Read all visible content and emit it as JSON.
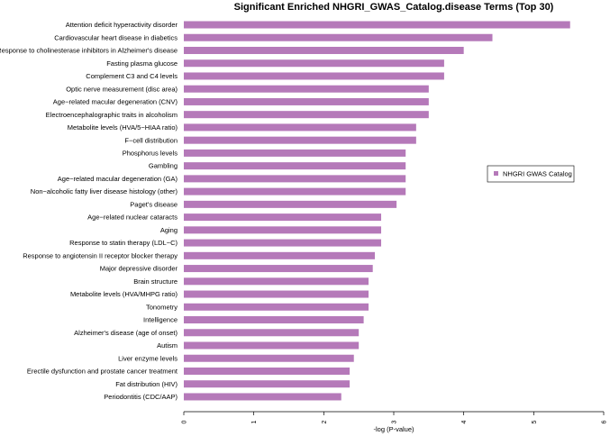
{
  "chart_data": {
    "type": "bar",
    "orientation": "horizontal",
    "title": "Significant Enriched NHGRI_GWAS_Catalog.disease Terms (Top 30)",
    "xlabel": "-log (P-value)",
    "ylabel": "",
    "xlim": [
      0,
      6
    ],
    "xticks": [
      0,
      1,
      2,
      3,
      4,
      5,
      6
    ],
    "grid": false,
    "legend": {
      "position": "right",
      "entries": [
        "NHGRI GWAS Catalog"
      ]
    },
    "bar_color": "#b579b9",
    "categories": [
      "Attention deficit hyperactivity disorder",
      "Cardiovascular heart disease in diabetics",
      "Response to cholinesterase inhibitors in Alzheimer's disease",
      "Fasting plasma glucose",
      "Complement C3 and C4 levels",
      "Optic nerve measurement (disc area)",
      "Age−related macular degeneration (CNV)",
      "Electroencephalographic traits in alcoholism",
      "Metabolite levels (HVA/5−HIAA ratio)",
      "F−cell distribution",
      "Phosphorus levels",
      "Gambling",
      "Age−related macular degeneration (GA)",
      "Non−alcoholic fatty liver disease histology (other)",
      "Paget's disease",
      "Age−related nuclear cataracts",
      "Aging",
      "Response to statin therapy (LDL−C)",
      "Response to angiotensin II receptor blocker therapy",
      "Major depressive disorder",
      "Brain structure",
      "Metabolite levels (HVA/MHPG ratio)",
      "Tonometry",
      "Intelligence",
      "Alzheimer's disease (age of onset)",
      "Autism",
      "Liver enzyme levels",
      "Erectile dysfunction and prostate cancer treatment",
      "Fat distribution (HIV)",
      "Periodontitis (CDC/AAP)"
    ],
    "series": [
      {
        "name": "NHGRI GWAS Catalog",
        "values": [
          5.52,
          4.41,
          4.0,
          3.72,
          3.72,
          3.5,
          3.5,
          3.5,
          3.32,
          3.32,
          3.17,
          3.17,
          3.17,
          3.17,
          3.04,
          2.82,
          2.82,
          2.82,
          2.73,
          2.7,
          2.64,
          2.64,
          2.64,
          2.57,
          2.5,
          2.5,
          2.43,
          2.37,
          2.37,
          2.25
        ]
      }
    ]
  }
}
